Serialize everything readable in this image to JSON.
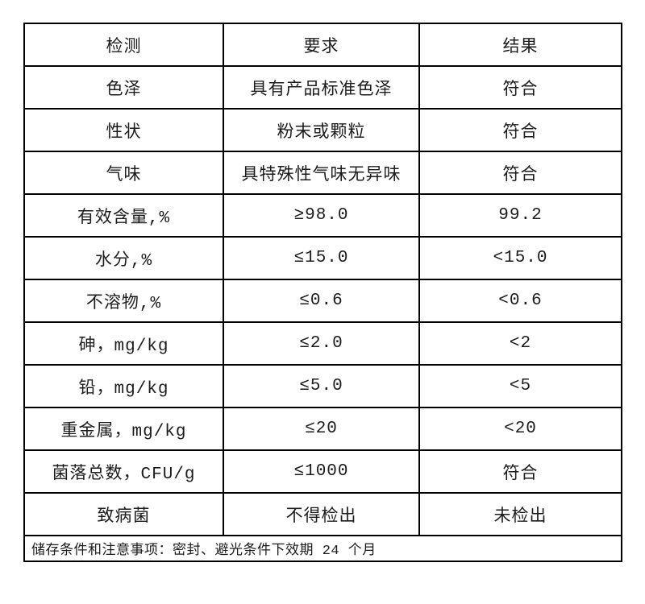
{
  "table": {
    "headers": [
      "检测",
      "要求",
      "结果"
    ],
    "rows": [
      [
        "色泽",
        "具有产品标准色泽",
        "符合"
      ],
      [
        "性状",
        "粉末或颗粒",
        "符合"
      ],
      [
        "气味",
        "具特殊性气味无异味",
        "符合"
      ],
      [
        "有效含量,%",
        "≥98.0",
        "99.2"
      ],
      [
        "水分,%",
        "≤15.0",
        "<15.0"
      ],
      [
        "不溶物,%",
        "≤0.6",
        "<0.6"
      ],
      [
        "砷，mg/kg",
        "≤2.0",
        "<2"
      ],
      [
        "铅，mg/kg",
        "≤5.0",
        "<5"
      ],
      [
        "重金属，mg/kg",
        "≤20",
        "<20"
      ],
      [
        "菌落总数，CFU/g",
        "≤1000",
        "符合"
      ],
      [
        "致病菌",
        "不得检出",
        "未检出"
      ]
    ],
    "footer_note": "储存条件和注意事项：密封、避光条件下效期 24 个月"
  },
  "colors": {
    "border": "#000000",
    "text": "#1c1c1c",
    "background": "#ffffff"
  }
}
